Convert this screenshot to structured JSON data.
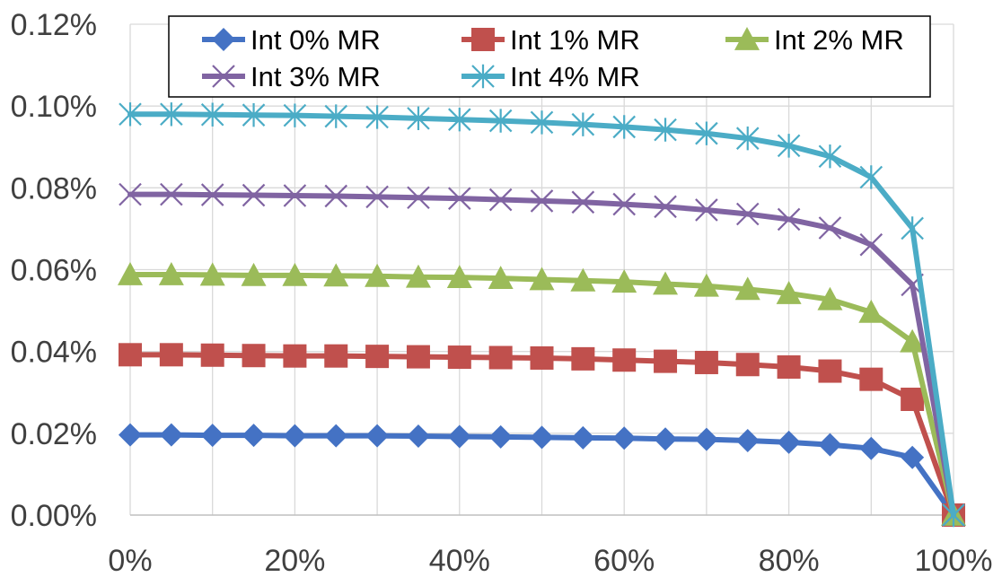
{
  "chart_data": {
    "type": "line",
    "x": [
      0,
      5,
      10,
      15,
      20,
      25,
      30,
      35,
      40,
      45,
      50,
      55,
      60,
      65,
      70,
      75,
      80,
      85,
      90,
      95,
      100
    ],
    "series": [
      {
        "name": "Int 0% MR",
        "color": "#4472C4",
        "marker": "diamond",
        "values": [
          0.0196,
          0.0196,
          0.0195,
          0.0195,
          0.0194,
          0.0194,
          0.0194,
          0.0193,
          0.0192,
          0.0191,
          0.019,
          0.0189,
          0.0188,
          0.0186,
          0.0185,
          0.0182,
          0.0178,
          0.0172,
          0.0163,
          0.0141,
          0.0
        ]
      },
      {
        "name": "Int 1% MR",
        "color": "#C0504D",
        "marker": "square",
        "values": [
          0.0392,
          0.0392,
          0.0391,
          0.039,
          0.0389,
          0.0389,
          0.0388,
          0.0387,
          0.0386,
          0.0385,
          0.0384,
          0.0382,
          0.0379,
          0.0376,
          0.0373,
          0.0368,
          0.0362,
          0.0352,
          0.0332,
          0.0283,
          0.0
        ]
      },
      {
        "name": "Int 2% MR",
        "color": "#9BBB59",
        "marker": "triangle",
        "values": [
          0.0588,
          0.0588,
          0.0587,
          0.0586,
          0.0586,
          0.0585,
          0.0584,
          0.0582,
          0.0581,
          0.0579,
          0.0576,
          0.0573,
          0.057,
          0.0565,
          0.056,
          0.0552,
          0.0542,
          0.0527,
          0.0496,
          0.0424,
          0.0
        ]
      },
      {
        "name": "Int 3% MR",
        "color": "#8064A2",
        "marker": "x",
        "values": [
          0.0784,
          0.0784,
          0.0783,
          0.0782,
          0.0781,
          0.078,
          0.0778,
          0.0776,
          0.0774,
          0.0771,
          0.0768,
          0.0765,
          0.076,
          0.0754,
          0.0746,
          0.0736,
          0.0723,
          0.0702,
          0.0661,
          0.0563,
          0.0
        ]
      },
      {
        "name": "Int 4% MR",
        "color": "#4BACC6",
        "marker": "star",
        "values": [
          0.098,
          0.098,
          0.0979,
          0.0978,
          0.0977,
          0.0975,
          0.0973,
          0.097,
          0.0967,
          0.0964,
          0.096,
          0.0955,
          0.0949,
          0.0942,
          0.0933,
          0.0921,
          0.0903,
          0.0877,
          0.0826,
          0.0701,
          0.0
        ]
      }
    ],
    "x_ticks": [
      0,
      20,
      40,
      60,
      80,
      100
    ],
    "x_tick_labels": [
      "0%",
      "20%",
      "40%",
      "60%",
      "80%",
      "100%"
    ],
    "y_ticks": [
      0,
      0.02,
      0.04,
      0.06,
      0.08,
      0.1,
      0.12
    ],
    "y_tick_labels": [
      "0.00%",
      "0.02%",
      "0.04%",
      "0.06%",
      "0.08%",
      "0.10%",
      "0.12%"
    ],
    "xlim": [
      0,
      100
    ],
    "ylim": [
      0,
      0.12
    ],
    "title": "",
    "xlabel": "",
    "ylabel": "",
    "grid": "vertical and horizontal",
    "legend_position": "top, inside plot area, 3 columns"
  }
}
